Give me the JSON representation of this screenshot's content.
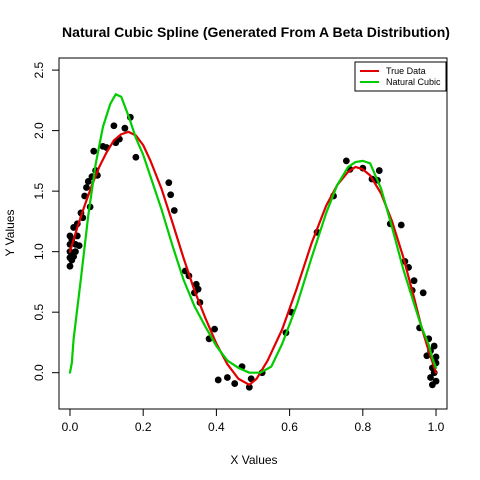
{
  "chart_data": {
    "type": "line",
    "title": "Natural Cubic Spline (Generated From A Beta Distribution)",
    "xlabel": "X Values",
    "ylabel": "Y Values",
    "xlim": [
      -0.03,
      1.03
    ],
    "ylim": [
      -0.3,
      2.6
    ],
    "x_ticks": [
      "0.0",
      "0.2",
      "0.4",
      "0.6",
      "0.8",
      "1.0"
    ],
    "x_tick_values": [
      0.0,
      0.2,
      0.4,
      0.6,
      0.8,
      1.0
    ],
    "y_ticks": [
      "0.0",
      "0.5",
      "1.0",
      "1.5",
      "2.0",
      "2.5"
    ],
    "y_tick_values": [
      0.0,
      0.5,
      1.0,
      1.5,
      2.0,
      2.5
    ],
    "legend_position": "top-right",
    "series": [
      {
        "name": "True Data",
        "color": "#e00000",
        "points": [
          [
            0.0,
            1.0
          ],
          [
            0.02,
            1.2
          ],
          [
            0.04,
            1.38
          ],
          [
            0.06,
            1.55
          ],
          [
            0.08,
            1.7
          ],
          [
            0.1,
            1.82
          ],
          [
            0.12,
            1.92
          ],
          [
            0.14,
            1.97
          ],
          [
            0.16,
            1.99
          ],
          [
            0.18,
            1.96
          ],
          [
            0.2,
            1.88
          ],
          [
            0.22,
            1.75
          ],
          [
            0.25,
            1.52
          ],
          [
            0.28,
            1.24
          ],
          [
            0.31,
            0.95
          ],
          [
            0.34,
            0.68
          ],
          [
            0.37,
            0.45
          ],
          [
            0.4,
            0.24
          ],
          [
            0.43,
            0.07
          ],
          [
            0.46,
            -0.05
          ],
          [
            0.49,
            -0.1
          ],
          [
            0.51,
            -0.05
          ],
          [
            0.54,
            0.1
          ],
          [
            0.58,
            0.36
          ],
          [
            0.62,
            0.7
          ],
          [
            0.66,
            1.07
          ],
          [
            0.7,
            1.38
          ],
          [
            0.73,
            1.55
          ],
          [
            0.76,
            1.66
          ],
          [
            0.78,
            1.7
          ],
          [
            0.8,
            1.68
          ],
          [
            0.82,
            1.63
          ],
          [
            0.85,
            1.48
          ],
          [
            0.88,
            1.25
          ],
          [
            0.91,
            0.96
          ],
          [
            0.94,
            0.62
          ],
          [
            0.96,
            0.38
          ],
          [
            0.98,
            0.18
          ],
          [
            1.0,
            0.0
          ]
        ]
      },
      {
        "name": "Natural Cubic",
        "color": "#00cc00",
        "points": [
          [
            0.0,
            0.0
          ],
          [
            0.005,
            0.08
          ],
          [
            0.01,
            0.28
          ],
          [
            0.03,
            0.78
          ],
          [
            0.05,
            1.3
          ],
          [
            0.07,
            1.72
          ],
          [
            0.09,
            2.03
          ],
          [
            0.11,
            2.22
          ],
          [
            0.125,
            2.3
          ],
          [
            0.14,
            2.28
          ],
          [
            0.16,
            2.12
          ],
          [
            0.18,
            1.94
          ],
          [
            0.2,
            1.8
          ],
          [
            0.22,
            1.62
          ],
          [
            0.25,
            1.35
          ],
          [
            0.28,
            1.05
          ],
          [
            0.31,
            0.77
          ],
          [
            0.34,
            0.55
          ],
          [
            0.37,
            0.38
          ],
          [
            0.4,
            0.22
          ],
          [
            0.43,
            0.1
          ],
          [
            0.46,
            0.04
          ],
          [
            0.49,
            0.0
          ],
          [
            0.52,
            0.0
          ],
          [
            0.55,
            0.05
          ],
          [
            0.58,
            0.24
          ],
          [
            0.62,
            0.56
          ],
          [
            0.66,
            0.95
          ],
          [
            0.7,
            1.32
          ],
          [
            0.73,
            1.55
          ],
          [
            0.76,
            1.7
          ],
          [
            0.78,
            1.74
          ],
          [
            0.8,
            1.75
          ],
          [
            0.82,
            1.73
          ],
          [
            0.85,
            1.52
          ],
          [
            0.88,
            1.2
          ],
          [
            0.91,
            0.86
          ],
          [
            0.94,
            0.57
          ],
          [
            0.96,
            0.38
          ],
          [
            0.98,
            0.23
          ],
          [
            0.99,
            0.12
          ],
          [
            1.0,
            0.04
          ]
        ]
      }
    ],
    "scatter": {
      "color": "#000000",
      "points": [
        [
          0.0,
          1.13
        ],
        [
          0.0,
          1.06
        ],
        [
          0.0,
          1.0
        ],
        [
          0.0,
          0.95
        ],
        [
          0.0,
          0.88
        ],
        [
          0.005,
          1.1
        ],
        [
          0.005,
          0.93
        ],
        [
          0.01,
          0.96
        ],
        [
          0.01,
          1.2
        ],
        [
          0.015,
          1.0
        ],
        [
          0.015,
          1.06
        ],
        [
          0.02,
          1.23
        ],
        [
          0.02,
          1.13
        ],
        [
          0.025,
          1.05
        ],
        [
          0.03,
          1.32
        ],
        [
          0.035,
          1.28
        ],
        [
          0.04,
          1.46
        ],
        [
          0.045,
          1.53
        ],
        [
          0.05,
          1.58
        ],
        [
          0.055,
          1.37
        ],
        [
          0.06,
          1.62
        ],
        [
          0.065,
          1.83
        ],
        [
          0.07,
          1.67
        ],
        [
          0.075,
          1.63
        ],
        [
          0.09,
          1.87
        ],
        [
          0.1,
          1.86
        ],
        [
          0.12,
          2.04
        ],
        [
          0.125,
          1.9
        ],
        [
          0.135,
          1.93
        ],
        [
          0.15,
          2.02
        ],
        [
          0.165,
          2.11
        ],
        [
          0.18,
          1.78
        ],
        [
          0.27,
          1.57
        ],
        [
          0.275,
          1.47
        ],
        [
          0.285,
          1.34
        ],
        [
          0.315,
          0.84
        ],
        [
          0.325,
          0.8
        ],
        [
          0.34,
          0.66
        ],
        [
          0.345,
          0.73
        ],
        [
          0.35,
          0.69
        ],
        [
          0.355,
          0.58
        ],
        [
          0.38,
          0.28
        ],
        [
          0.395,
          0.36
        ],
        [
          0.405,
          -0.06
        ],
        [
          0.43,
          -0.04
        ],
        [
          0.45,
          -0.09
        ],
        [
          0.47,
          0.05
        ],
        [
          0.49,
          -0.12
        ],
        [
          0.495,
          -0.05
        ],
        [
          0.525,
          0.0
        ],
        [
          0.59,
          0.33
        ],
        [
          0.605,
          0.5
        ],
        [
          0.675,
          1.16
        ],
        [
          0.72,
          1.46
        ],
        [
          0.755,
          1.75
        ],
        [
          0.765,
          1.68
        ],
        [
          0.8,
          1.69
        ],
        [
          0.825,
          1.6
        ],
        [
          0.84,
          1.59
        ],
        [
          0.845,
          1.67
        ],
        [
          0.875,
          1.23
        ],
        [
          0.905,
          1.22
        ],
        [
          0.915,
          0.92
        ],
        [
          0.925,
          0.87
        ],
        [
          0.935,
          0.68
        ],
        [
          0.94,
          0.76
        ],
        [
          0.955,
          0.37
        ],
        [
          0.965,
          0.66
        ],
        [
          0.975,
          0.14
        ],
        [
          0.98,
          0.28
        ],
        [
          0.985,
          -0.04
        ],
        [
          0.985,
          0.18
        ],
        [
          0.99,
          0.04
        ],
        [
          0.99,
          -0.1
        ],
        [
          0.995,
          0.0
        ],
        [
          0.995,
          0.22
        ],
        [
          1.0,
          0.13
        ],
        [
          1.0,
          -0.07
        ],
        [
          1.0,
          0.08
        ]
      ]
    }
  }
}
